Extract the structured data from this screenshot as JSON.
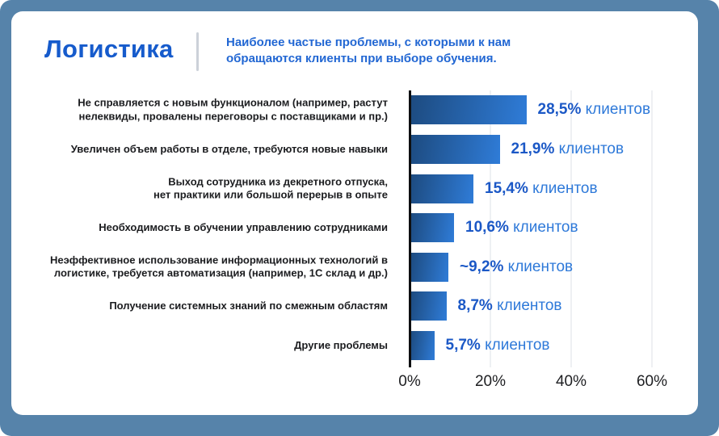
{
  "frame": {
    "background": "#5683aa",
    "card_background": "#ffffff"
  },
  "header": {
    "title": "Логистика",
    "subtitle": "Наиболее частые проблемы, с которыми к нам\nобращаются клиенты при выборе обучения."
  },
  "chart_data": {
    "type": "bar",
    "orientation": "horizontal",
    "categories": [
      "Не справляется с новым функционалом (например, растут\nнелеквиды, провалены переговоры с поставщиками и пр.)",
      "Увеличен объем работы в отделе, требуются новые навыки",
      "Выход сотрудника из декретного отпуска,\nнет практики или большой перерыв в опыте",
      "Необходимость в обучении управлению сотрудниками",
      "Неэффективное использование информационных технологий в\nлогистике, требуется автоматизация (например, 1С склад и др.)",
      "Получение системных знаний по смежным областям",
      "Другие проблемы"
    ],
    "values": [
      28.5,
      21.9,
      15.4,
      10.6,
      9.2,
      8.7,
      5.7
    ],
    "value_labels": [
      "28,5%",
      "21,9%",
      "15,4%",
      "10,6%",
      "~9,2%",
      "8,7%",
      "5,7%"
    ],
    "value_suffix": "клиентов",
    "xlim": [
      0,
      60
    ],
    "x_tick_values": [
      0,
      20,
      40,
      60
    ],
    "x_tick_labels": [
      "0%",
      "20%",
      "40%",
      "60%"
    ],
    "grid": "vertical",
    "bar_gradient": [
      "#1d4b80",
      "#2f7cd8"
    ],
    "percent_color": "#1b58c6",
    "suffix_color": "#2e79d9",
    "title": "Логистика",
    "xlabel": "",
    "ylabel": ""
  }
}
